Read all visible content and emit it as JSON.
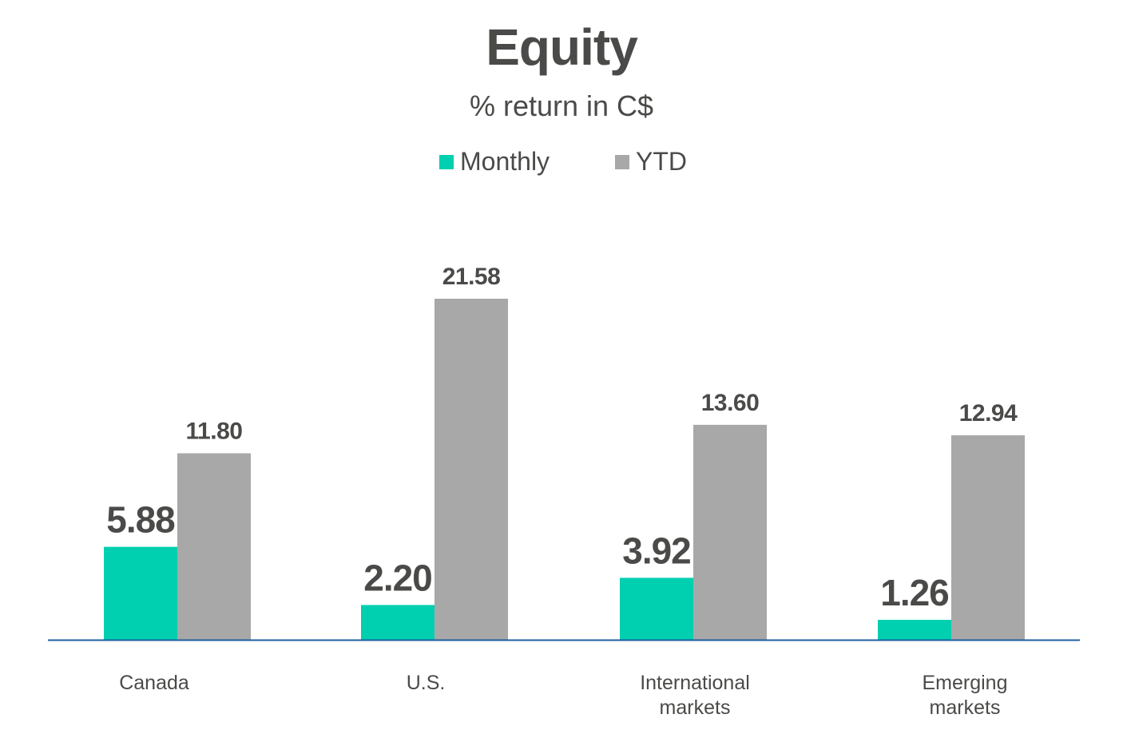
{
  "chart_data": {
    "type": "bar",
    "title": "Equity",
    "subtitle": "% return in C$",
    "categories": [
      "Canada",
      "U.S.",
      "International markets",
      "Emerging markets"
    ],
    "category_lines": [
      [
        "Canada"
      ],
      [
        "U.S."
      ],
      [
        "International",
        "markets"
      ],
      [
        "Emerging",
        "markets"
      ]
    ],
    "series": [
      {
        "name": "Monthly",
        "color": "#00cfb0",
        "values": [
          5.88,
          2.2,
          3.92,
          1.26
        ],
        "labels": [
          "5.88",
          "2.20",
          "3.92",
          "1.26"
        ]
      },
      {
        "name": "YTD",
        "color": "#a8a8a8",
        "values": [
          11.8,
          21.58,
          13.6,
          12.94
        ],
        "labels": [
          "11.80",
          "21.58",
          "13.60",
          "12.94"
        ]
      }
    ],
    "ylim": [
      0,
      22
    ],
    "grid": false,
    "legend": "top-center",
    "axis_color": "#1f5fa0"
  }
}
